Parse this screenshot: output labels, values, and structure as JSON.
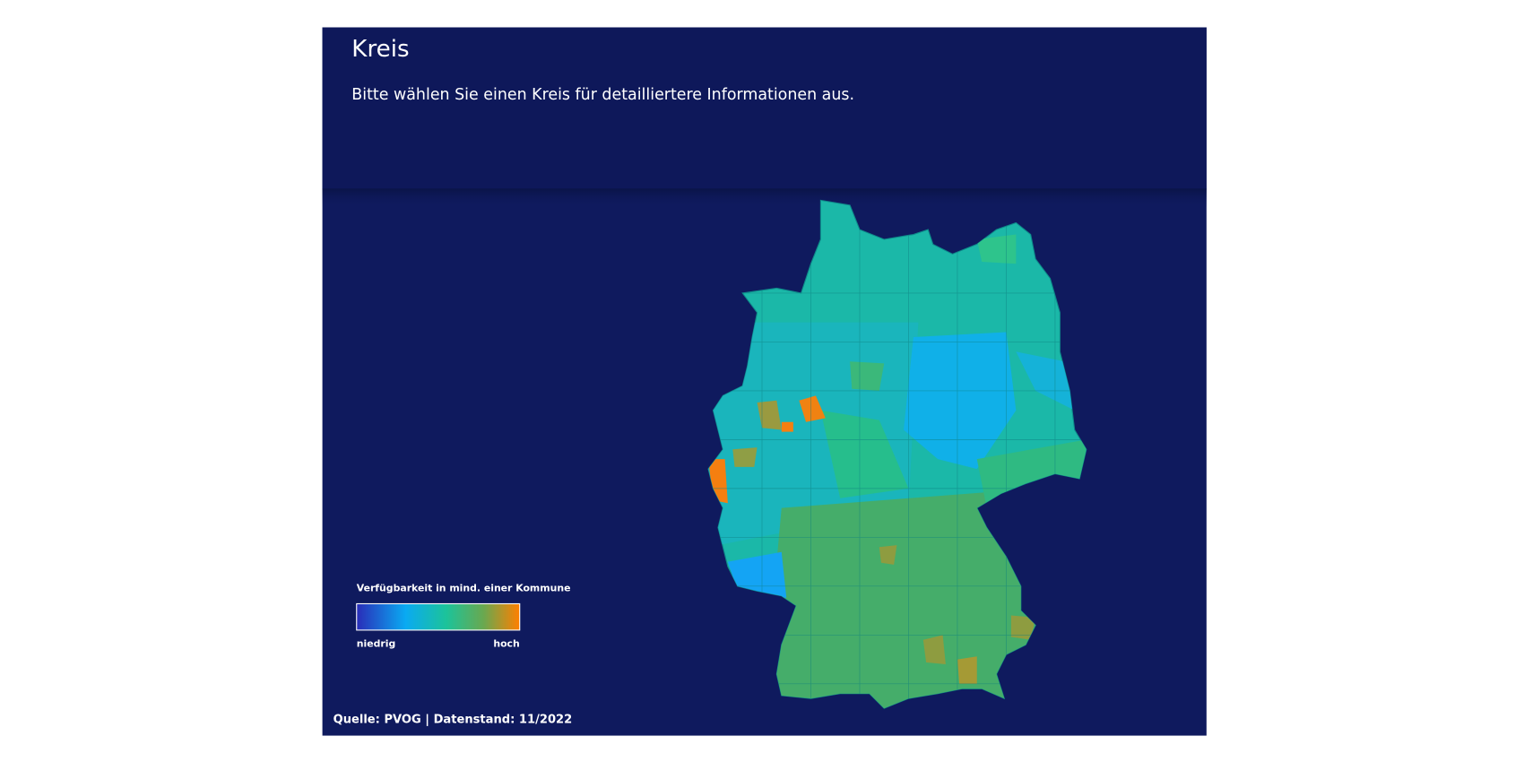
{
  "header": {
    "title": "Kreis",
    "subtitle": "Bitte wählen Sie einen Kreis für detailliertere Informationen aus."
  },
  "legend": {
    "title": "Verfügbarkeit in mind. einer Kommune",
    "low_label": "niedrig",
    "high_label": "hoch"
  },
  "footer": {
    "source": "Quelle: PVOG | Datenstand: 11/2022"
  }
}
